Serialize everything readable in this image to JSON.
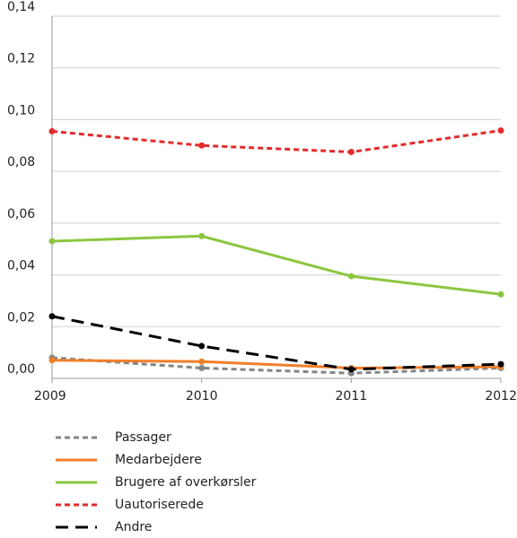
{
  "chart_data": {
    "type": "line",
    "x": [
      2009,
      2010,
      2011,
      2012
    ],
    "xlim": [
      2009,
      2012
    ],
    "xticks": [
      2009,
      2010,
      2011,
      2012
    ],
    "ylim": [
      0,
      0.14
    ],
    "yticks": [
      {
        "value": 0,
        "label": "0,00"
      },
      {
        "value": 0.02,
        "label": "0,02"
      },
      {
        "value": 0.04,
        "label": "0,04"
      },
      {
        "value": 0.06,
        "label": "0,06"
      },
      {
        "value": 0.08,
        "label": "0,08"
      },
      {
        "value": 0.1,
        "label": "0,10"
      },
      {
        "value": 0.12,
        "label": "0,12"
      },
      {
        "value": 0.14,
        "label": "0,14"
      }
    ],
    "grid": true,
    "legend": "bottom",
    "series": [
      {
        "name": "Passager",
        "color": "#858585",
        "dash": "short",
        "values": [
          0.008,
          0.004,
          0.002,
          0.004
        ]
      },
      {
        "name": "Medarbejdere",
        "color": "#f07f2a",
        "dash": "solid",
        "values": [
          0.007,
          0.0065,
          0.004,
          0.0045
        ]
      },
      {
        "name": "Brugere af overkørsler",
        "color": "#8cc63f",
        "dash": "solid",
        "values": [
          0.053,
          0.055,
          0.0395,
          0.0325
        ]
      },
      {
        "name": "Uautoriserede",
        "color": "#e32b2b",
        "dash": "short",
        "values": [
          0.0955,
          0.09,
          0.0875,
          0.0958
        ]
      },
      {
        "name": "Andre",
        "color": "#000000",
        "dash": "long",
        "values": [
          0.024,
          0.0125,
          0.0035,
          0.0055
        ]
      }
    ]
  }
}
